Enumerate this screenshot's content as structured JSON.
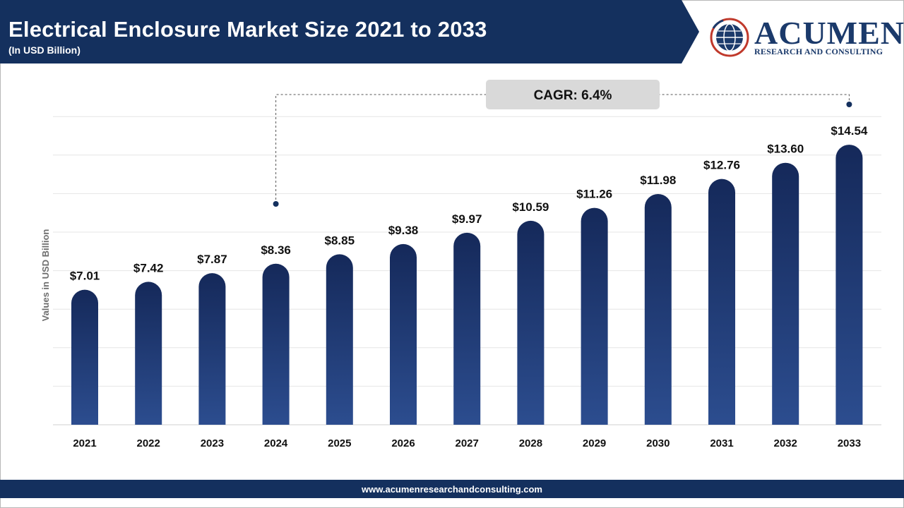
{
  "header": {
    "title": "Electrical Enclosure Market Size 2021 to 2033",
    "subtitle": "(In USD Billion)"
  },
  "logo": {
    "name": "ACUMEN",
    "tagline": "RESEARCH AND CONSULTING"
  },
  "footer": {
    "url": "www.acumenresearchandconsulting.com"
  },
  "colors": {
    "header_navy": "#14305e",
    "bar_top": "#15295a",
    "bar_bottom": "#2c4d8f",
    "cagr_box": "#d9d9d9",
    "grid": "#e6e6e6"
  },
  "chart_data": {
    "type": "bar",
    "title": "Electrical Enclosure Market Size 2021 to 2033",
    "subtitle": "(In USD Billion)",
    "xlabel": "",
    "ylabel": "Values in USD Billion",
    "categories": [
      "2021",
      "2022",
      "2023",
      "2024",
      "2025",
      "2026",
      "2027",
      "2028",
      "2029",
      "2030",
      "2031",
      "2032",
      "2033"
    ],
    "values": [
      7.01,
      7.42,
      7.87,
      8.36,
      8.85,
      9.38,
      9.97,
      10.59,
      11.26,
      11.98,
      12.76,
      13.6,
      14.54
    ],
    "value_labels": [
      "$7.01",
      "$7.42",
      "$7.87",
      "$8.36",
      "$8.85",
      "$9.38",
      "$9.97",
      "$10.59",
      "$11.26",
      "$11.98",
      "$12.76",
      "$13.60",
      "$14.54"
    ],
    "ylim": [
      0,
      16
    ],
    "grid": true,
    "legend": "none",
    "annotation": {
      "text": "CAGR: 6.4%",
      "from_category": "2024",
      "to_category": "2033"
    }
  }
}
